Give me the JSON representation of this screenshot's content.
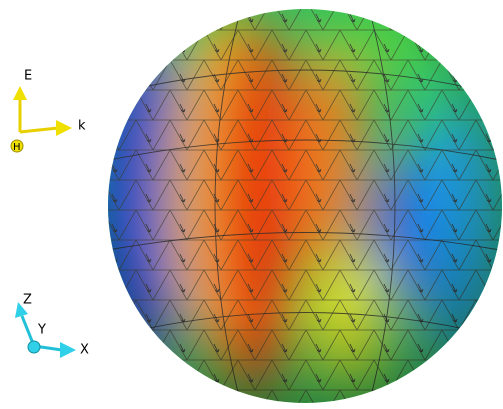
{
  "field_triad": {
    "up": "E",
    "right": "k",
    "out": "H"
  },
  "axes_triad": {
    "up": "Z",
    "out": "Y",
    "right": "X"
  }
}
